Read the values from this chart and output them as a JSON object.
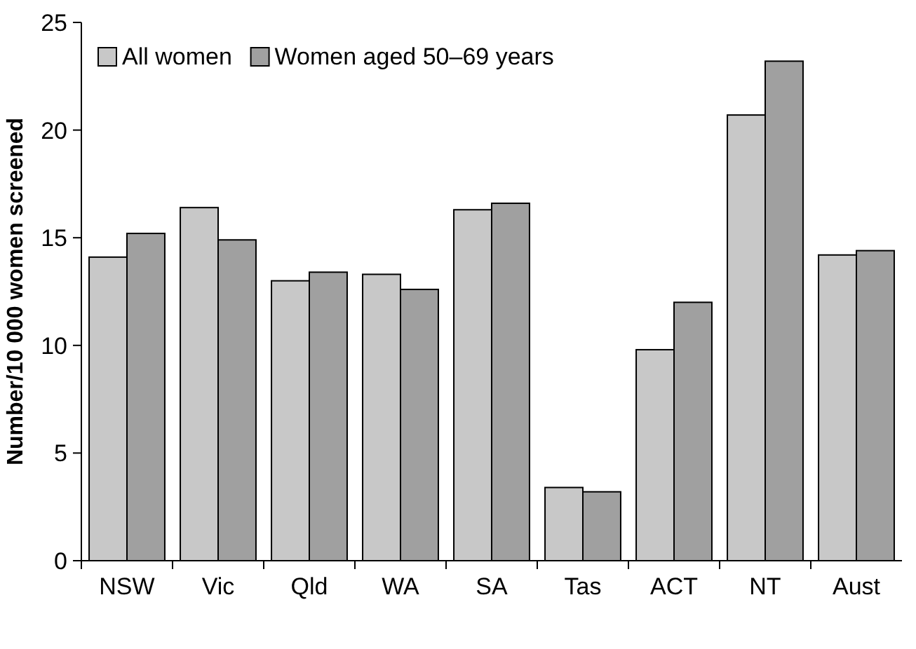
{
  "chart_data": {
    "type": "bar",
    "ylabel": "Number/10 000 women screened",
    "categories": [
      "NSW",
      "Vic",
      "Qld",
      "WA",
      "SA",
      "Tas",
      "ACT",
      "NT",
      "Aust"
    ],
    "series": [
      {
        "name": "All women",
        "color": "#c8c8c8",
        "values": [
          14.1,
          16.4,
          13.0,
          13.3,
          16.3,
          3.4,
          9.8,
          20.7,
          14.2
        ]
      },
      {
        "name": "Women aged 50–69 years",
        "color": "#a0a0a0",
        "values": [
          15.2,
          14.9,
          13.4,
          12.6,
          16.6,
          3.2,
          12.0,
          23.2,
          14.4
        ]
      }
    ],
    "ylim": [
      0,
      25
    ],
    "yticks": [
      0,
      5,
      10,
      15,
      20,
      25
    ],
    "grid": false,
    "legend": "top left"
  }
}
